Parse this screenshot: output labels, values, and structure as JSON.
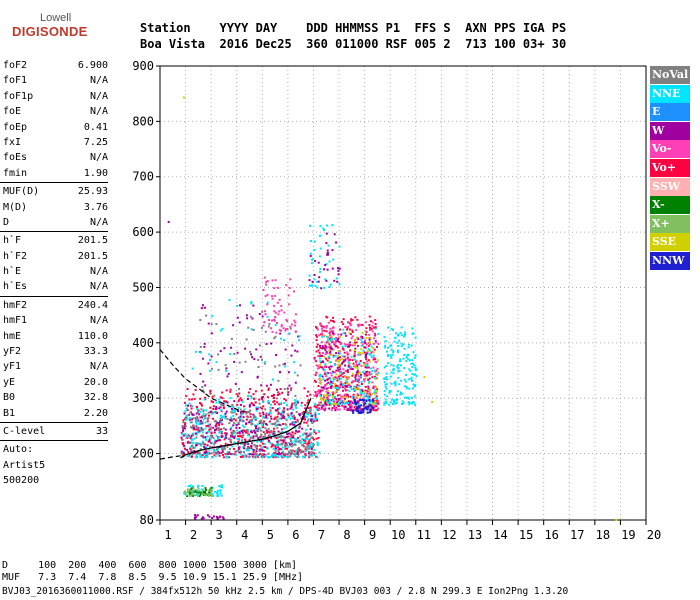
{
  "logo": {
    "top": "Lowell",
    "main": "DIGISONDE"
  },
  "header": {
    "line1": "Station    YYYY DAY    DDD HHMMSS P1  FFS S  AXN PPS IGA PS",
    "line2": "Boa Vista  2016 Dec25  360 011000 RSF 005 2  713 100 03+ 30"
  },
  "parameters": [
    {
      "name": "foF2",
      "value": "6.900"
    },
    {
      "name": "foF1",
      "value": "N/A"
    },
    {
      "name": "foF1p",
      "value": "N/A"
    },
    {
      "name": "foE",
      "value": "N/A"
    },
    {
      "name": "foEp",
      "value": "0.41"
    },
    {
      "name": "fxI",
      "value": "7.25"
    },
    {
      "name": "foEs",
      "value": "N/A"
    },
    {
      "name": "fmin",
      "value": "1.90"
    },
    {
      "sep": true
    },
    {
      "name": "MUF(D)",
      "value": "25.93"
    },
    {
      "name": "M(D)",
      "value": "3.76"
    },
    {
      "name": "D",
      "value": "N/A"
    },
    {
      "sep": true
    },
    {
      "name": "h`F",
      "value": "201.5"
    },
    {
      "name": "h`F2",
      "value": "201.5"
    },
    {
      "name": "h`E",
      "value": "N/A"
    },
    {
      "name": "h`Es",
      "value": "N/A"
    },
    {
      "sep": true
    },
    {
      "name": "hmF2",
      "value": "240.4"
    },
    {
      "name": "hmF1",
      "value": "N/A"
    },
    {
      "name": "hmE",
      "value": "110.0"
    },
    {
      "name": "yF2",
      "value": "33.3"
    },
    {
      "name": "yF1",
      "value": "N/A"
    },
    {
      "name": "yE",
      "value": "20.0"
    },
    {
      "name": "B0",
      "value": "32.8"
    },
    {
      "name": "B1",
      "value": "2.20"
    },
    {
      "sep": true
    },
    {
      "name": "C-level",
      "value": "33"
    },
    {
      "sep": true
    },
    {
      "name": "Auto:",
      "value": ""
    },
    {
      "name": "Artist5",
      "value": ""
    },
    {
      "name": "500200",
      "value": ""
    }
  ],
  "footer": {
    "d_line": "D     100  200  400  600  800 1000 1500 3000 [km]",
    "muf_line": "MUF   7.3  7.4  7.8  8.5  9.5 10.9 15.1 25.9 [MHz]",
    "info_line": "BVJ03_2016360011000.RSF / 384fx512h 50 kHz 2.5 km / DPS-4D BVJ03 003 / 2.8 N 299.3 E Ion2Png 1.3.20"
  },
  "legend": [
    {
      "label": "NoVal",
      "color": "#808080"
    },
    {
      "label": "NNE",
      "color": "#00e5ff"
    },
    {
      "label": "E",
      "color": "#1e90ff"
    },
    {
      "label": "W",
      "color": "#a000a0"
    },
    {
      "label": "Vo-",
      "color": "#ff3fb5"
    },
    {
      "label": "Vo+",
      "color": "#ff0040"
    },
    {
      "label": "SSW",
      "color": "#ffb0b0"
    },
    {
      "label": "X-",
      "color": "#008000"
    },
    {
      "label": "X+",
      "color": "#80c060"
    },
    {
      "label": "SSE",
      "color": "#d0d000"
    },
    {
      "label": "NNW",
      "color": "#2020d0"
    }
  ],
  "chart_data": {
    "type": "scatter",
    "xlim": [
      1,
      20
    ],
    "ylim": [
      80,
      900
    ],
    "x_ticks": [
      1,
      2,
      3,
      4,
      5,
      6,
      7,
      8,
      9,
      10,
      11,
      12,
      13,
      14,
      15,
      16,
      17,
      18,
      19,
      20
    ],
    "y_ticks": [
      80,
      200,
      300,
      400,
      500,
      600,
      700,
      800,
      900
    ],
    "grid": "dotted",
    "clusters": [
      {
        "x": [
          1.8,
          7.2
        ],
        "y": [
          195,
          320
        ],
        "color_index": 5,
        "n": 500
      },
      {
        "x": [
          1.8,
          7.2
        ],
        "y": [
          195,
          300
        ],
        "color_index": 1,
        "n": 350
      },
      {
        "x": [
          1.8,
          7.0
        ],
        "y": [
          200,
          290
        ],
        "color_index": 3,
        "n": 200
      },
      {
        "x": [
          1.8,
          7.0
        ],
        "y": [
          200,
          280
        ],
        "color_index": 0,
        "n": 200
      },
      {
        "x": [
          7.0,
          9.5
        ],
        "y": [
          280,
          450
        ],
        "color_index": 5,
        "n": 300
      },
      {
        "x": [
          7.0,
          9.5
        ],
        "y": [
          280,
          440
        ],
        "color_index": 4,
        "n": 250
      },
      {
        "x": [
          7.2,
          9.2
        ],
        "y": [
          280,
          420
        ],
        "color_index": 3,
        "n": 150
      },
      {
        "x": [
          7.2,
          9.5
        ],
        "y": [
          290,
          420
        ],
        "color_index": 9,
        "n": 120
      },
      {
        "x": [
          7.2,
          9.5
        ],
        "y": [
          290,
          430
        ],
        "color_index": 1,
        "n": 120
      },
      {
        "x": [
          9.7,
          11.0
        ],
        "y": [
          290,
          430
        ],
        "color_index": 1,
        "n": 180
      },
      {
        "x": [
          8.5,
          9.3
        ],
        "y": [
          275,
          300
        ],
        "color_index": 10,
        "n": 60
      },
      {
        "x": [
          2.5,
          6.5
        ],
        "y": [
          230,
          470
        ],
        "color_index": 3,
        "n": 110
      },
      {
        "x": [
          2.5,
          6.5
        ],
        "y": [
          230,
          460
        ],
        "color_index": 0,
        "n": 90
      },
      {
        "x": [
          2.2,
          6.5
        ],
        "y": [
          220,
          480
        ],
        "color_index": 1,
        "n": 70
      },
      {
        "x": [
          5.0,
          6.3
        ],
        "y": [
          420,
          520
        ],
        "color_index": 4,
        "n": 60
      },
      {
        "x": [
          6.8,
          8.0
        ],
        "y": [
          500,
          620
        ],
        "color_index": 1,
        "n": 40
      },
      {
        "x": [
          6.8,
          8.0
        ],
        "y": [
          500,
          600
        ],
        "color_index": 3,
        "n": 30
      },
      {
        "x": [
          1.9,
          3.5
        ],
        "y": [
          125,
          145
        ],
        "color_index": 1,
        "n": 50
      },
      {
        "x": [
          1.9,
          3.0
        ],
        "y": [
          125,
          140
        ],
        "color_index": 7,
        "n": 40
      },
      {
        "x": [
          1.9,
          3.0
        ],
        "y": [
          125,
          140
        ],
        "color_index": 8,
        "n": 30
      },
      {
        "x": [
          2.3,
          3.5
        ],
        "y": [
          84,
          92
        ],
        "color_index": 3,
        "n": 20
      }
    ],
    "outliers": [
      {
        "x": 1.3,
        "y": 620,
        "color_index": 3
      },
      {
        "x": 1.9,
        "y": 845,
        "color_index": 9
      },
      {
        "x": 11.3,
        "y": 340,
        "color_index": 9
      },
      {
        "x": 11.6,
        "y": 295,
        "color_index": 9
      },
      {
        "x": 18.8,
        "y": 82,
        "color_index": 9
      }
    ],
    "trace_solid": {
      "x": [
        1.8,
        2.0,
        2.5,
        3.0,
        3.5,
        4.0,
        4.5,
        5.0,
        5.5,
        6.0,
        6.5,
        6.9
      ],
      "y": [
        192,
        198,
        205,
        210,
        214,
        218,
        222,
        226,
        232,
        240,
        255,
        300
      ]
    },
    "trace_dashed": {
      "x": [
        1.0,
        1.5,
        2.0,
        2.5,
        3.0,
        3.5,
        4.0,
        4.3
      ],
      "y": [
        388,
        360,
        335,
        318,
        300,
        290,
        280,
        275
      ]
    },
    "dashed_low": {
      "x": [
        1.0,
        1.5,
        1.8
      ],
      "y": [
        190,
        194,
        196
      ]
    }
  }
}
